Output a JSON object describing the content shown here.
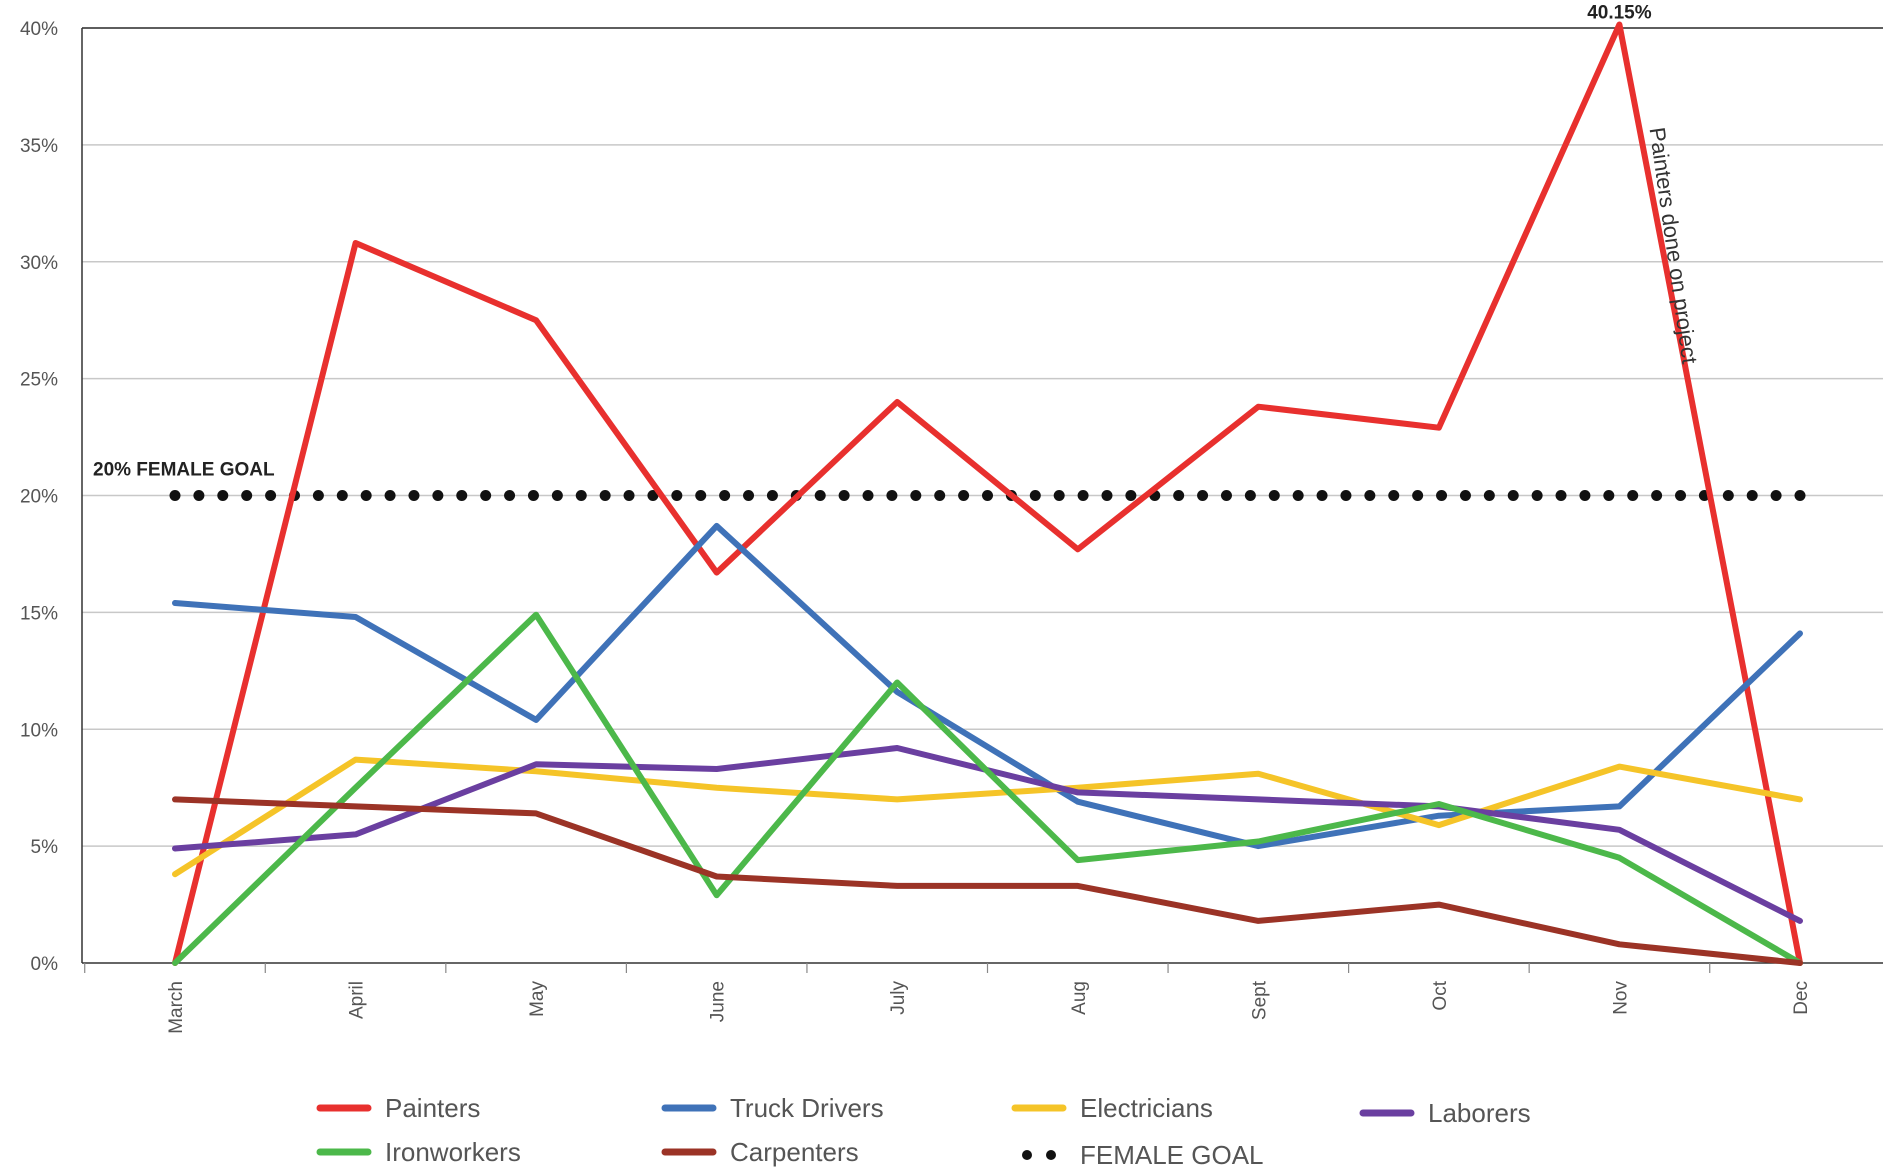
{
  "chart_data": {
    "type": "line",
    "categories": [
      "March",
      "April",
      "May",
      "June",
      "July",
      "Aug",
      "Sept",
      "Oct",
      "Nov",
      "Dec"
    ],
    "ylim": [
      0,
      40
    ],
    "yticks": [
      0,
      5,
      10,
      15,
      20,
      25,
      30,
      35,
      40
    ],
    "ytick_labels": [
      "0%",
      "5%",
      "10%",
      "15%",
      "20%",
      "25%",
      "30%",
      "35%",
      "40%"
    ],
    "grid": "horizontal",
    "legend_position": "bottom",
    "series": [
      {
        "name": "Painters",
        "color": "#E8302E",
        "values": [
          0,
          30.8,
          27.5,
          16.7,
          24.0,
          17.7,
          23.8,
          22.9,
          40.15,
          0
        ]
      },
      {
        "name": "Truck Drivers",
        "color": "#3F72B8",
        "values": [
          15.4,
          14.8,
          10.4,
          18.7,
          11.6,
          6.9,
          5.0,
          6.3,
          6.7,
          14.1
        ]
      },
      {
        "name": "Electricians",
        "color": "#F5C428",
        "values": [
          3.8,
          8.7,
          8.2,
          7.5,
          7.0,
          7.5,
          8.1,
          5.9,
          8.4,
          7.0
        ]
      },
      {
        "name": "Laborers",
        "color": "#6A3FA0",
        "values": [
          4.9,
          5.5,
          8.5,
          8.3,
          9.2,
          7.3,
          7.0,
          6.7,
          5.7,
          1.8
        ]
      },
      {
        "name": "Ironworkers",
        "color": "#4CB84A",
        "values": [
          0,
          7.5,
          14.9,
          2.9,
          12.0,
          4.4,
          5.2,
          6.8,
          4.5,
          0
        ]
      },
      {
        "name": "Carpenters",
        "color": "#9B3326",
        "values": [
          7.0,
          6.7,
          6.4,
          3.7,
          3.3,
          3.3,
          1.8,
          2.5,
          0.8,
          0
        ]
      }
    ],
    "goal": {
      "name": "FEMALE GOAL",
      "value": 20,
      "color": "#111111",
      "label": "20% FEMALE GOAL"
    },
    "annotations": [
      {
        "text": "40.15%",
        "category": "Nov",
        "value": 40.15
      },
      {
        "text": "Painters done on project",
        "category": "Nov",
        "value": 28
      }
    ],
    "legend": [
      {
        "name": "Painters",
        "color": "#E8302E",
        "marker": "line"
      },
      {
        "name": "Truck Drivers",
        "color": "#3F72B8",
        "marker": "line"
      },
      {
        "name": "Electricians",
        "color": "#F5C428",
        "marker": "line"
      },
      {
        "name": "Laborers",
        "color": "#6A3FA0",
        "marker": "line"
      },
      {
        "name": "Ironworkers",
        "color": "#4CB84A",
        "marker": "line"
      },
      {
        "name": "Carpenters",
        "color": "#9B3326",
        "marker": "line"
      },
      {
        "name": "FEMALE GOAL",
        "color": "#111111",
        "marker": "dots"
      }
    ]
  }
}
